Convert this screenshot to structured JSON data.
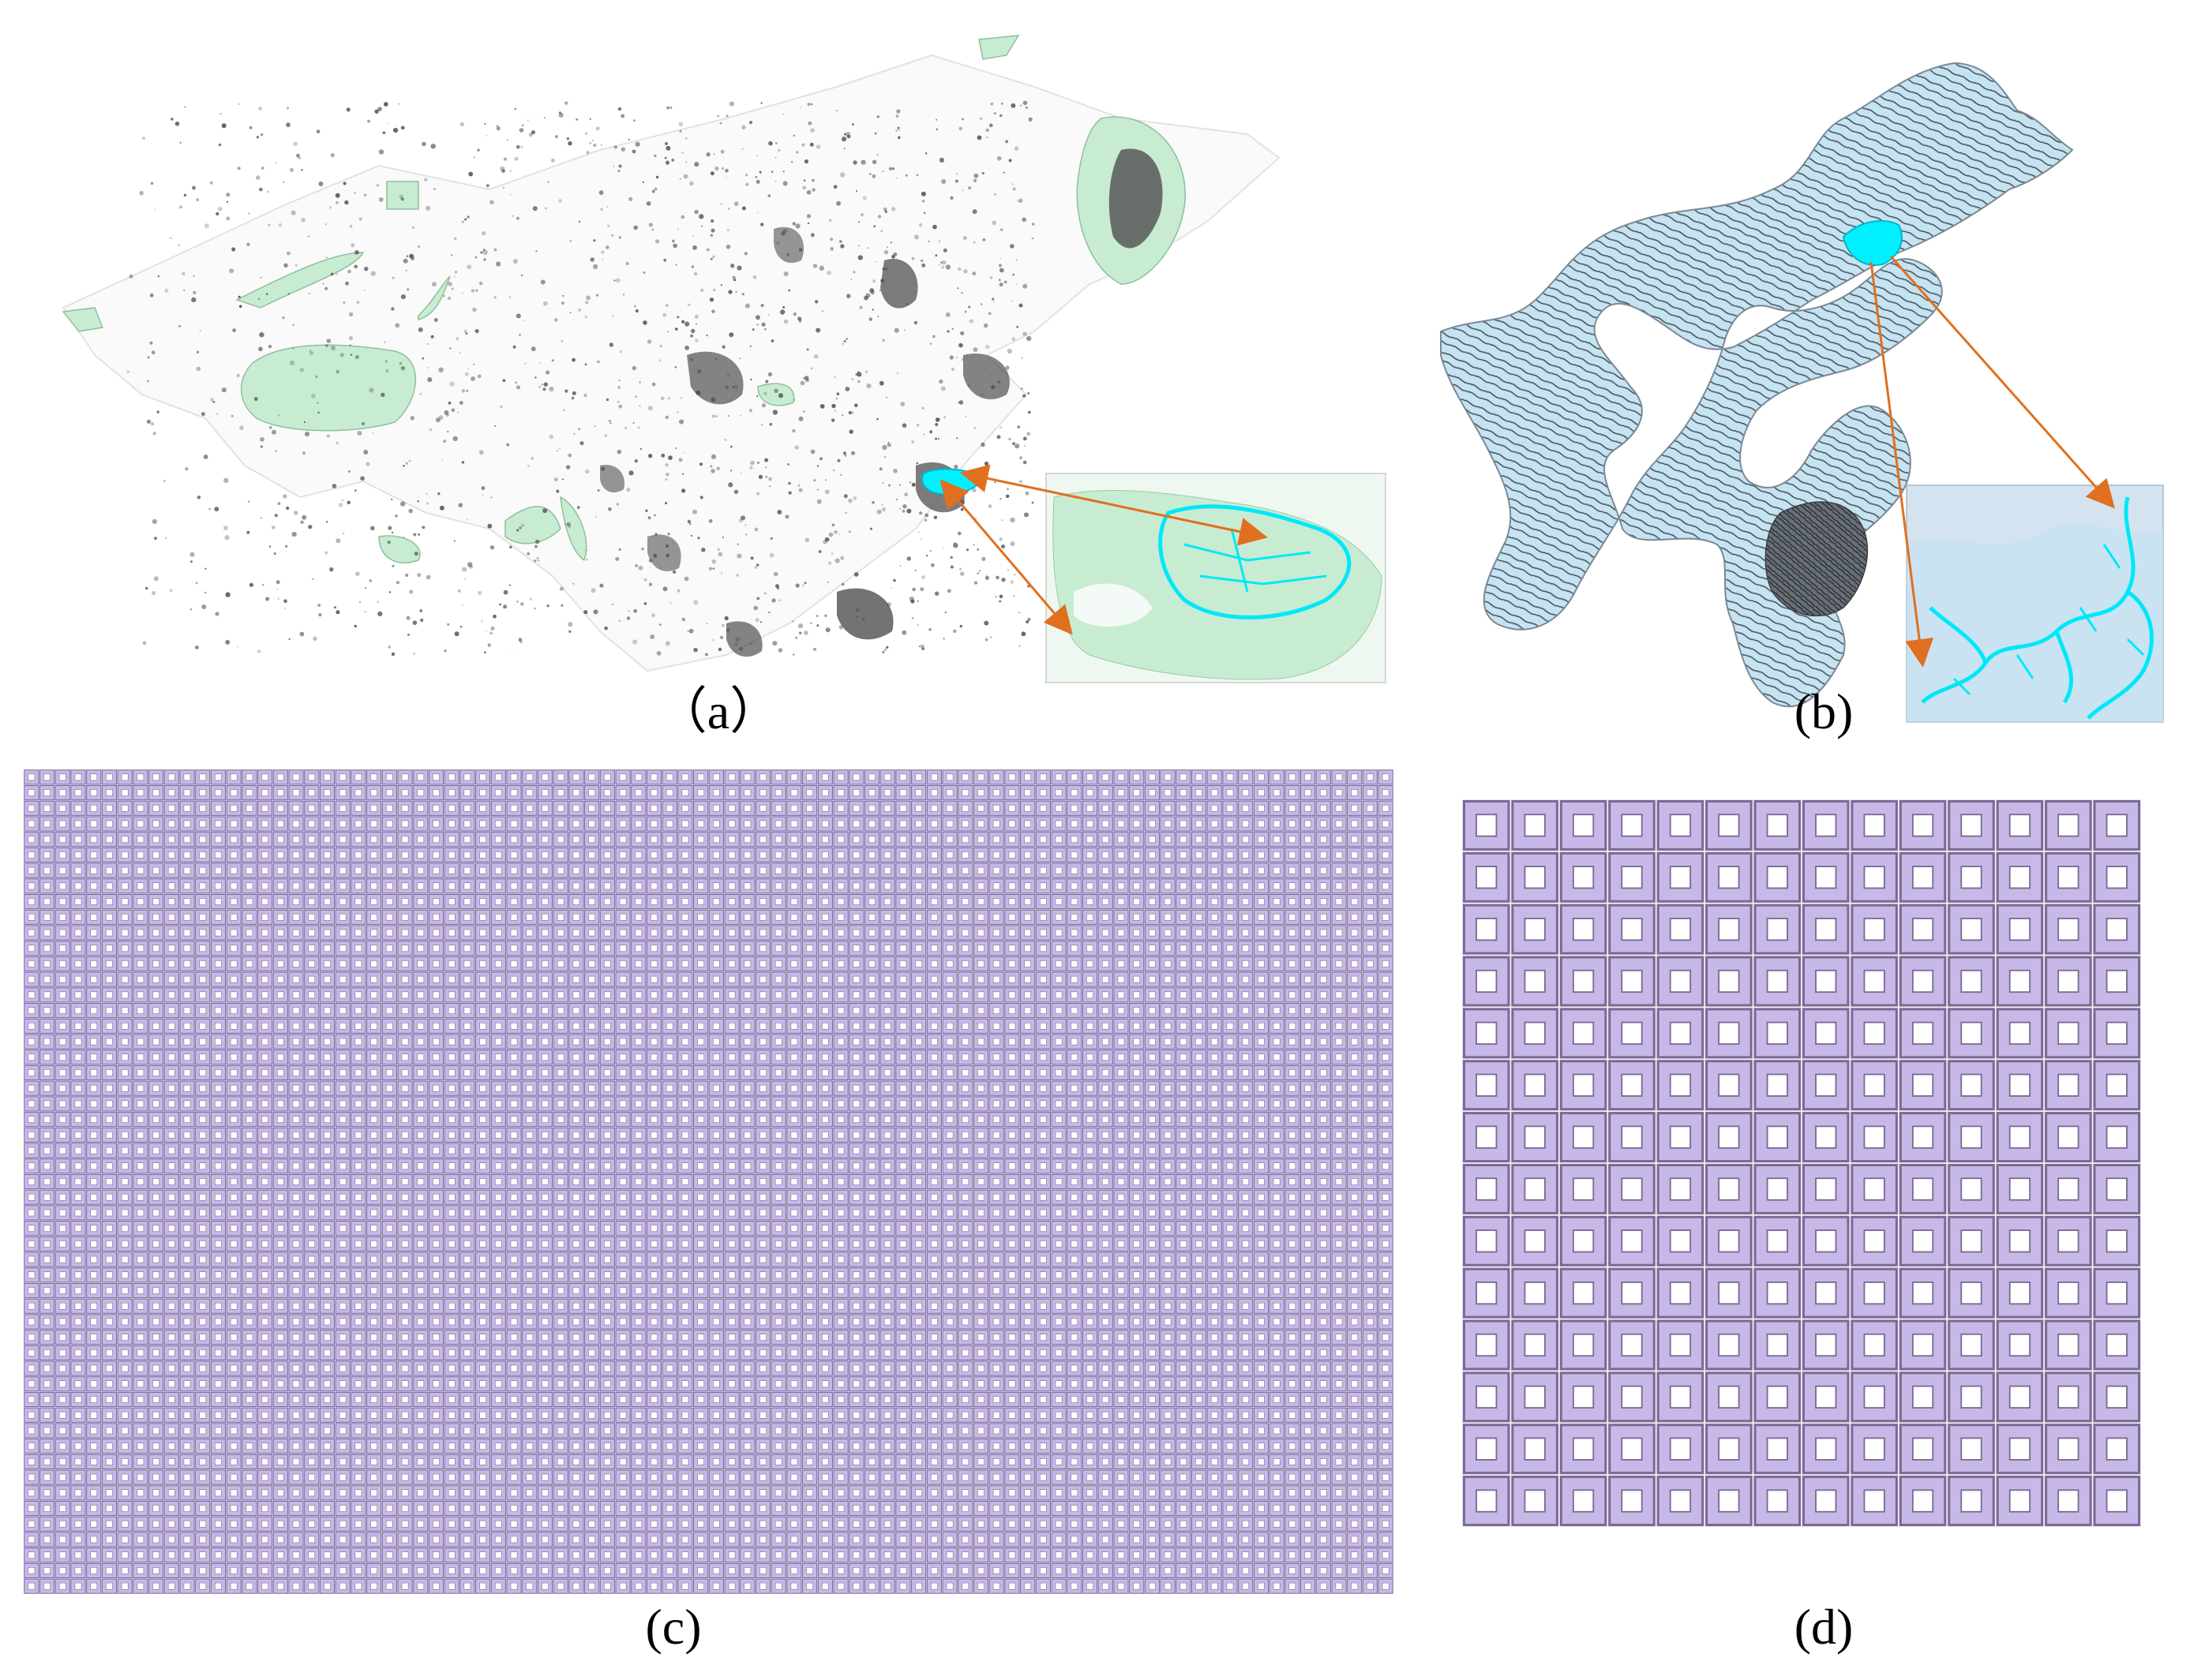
{
  "colors": {
    "land_green": "#c8ecd2",
    "cluster_gray": "#505050",
    "highlight_cyan": "#00f0ff",
    "basin_blue": "#c6e3f2",
    "arrow_orange": "#e07020",
    "grid_fill": "#c8b8e8",
    "grid_stroke": "#7a6a94",
    "cell_hole": "#ffffff"
  },
  "panels": {
    "a": {
      "caption": "（a）"
    },
    "b": {
      "caption": "(b)"
    },
    "c": {
      "caption": "(c)",
      "grid_cols": 88,
      "grid_rows": 53
    },
    "d": {
      "caption": "(d)",
      "grid_cols": 14,
      "grid_rows": 14
    }
  }
}
